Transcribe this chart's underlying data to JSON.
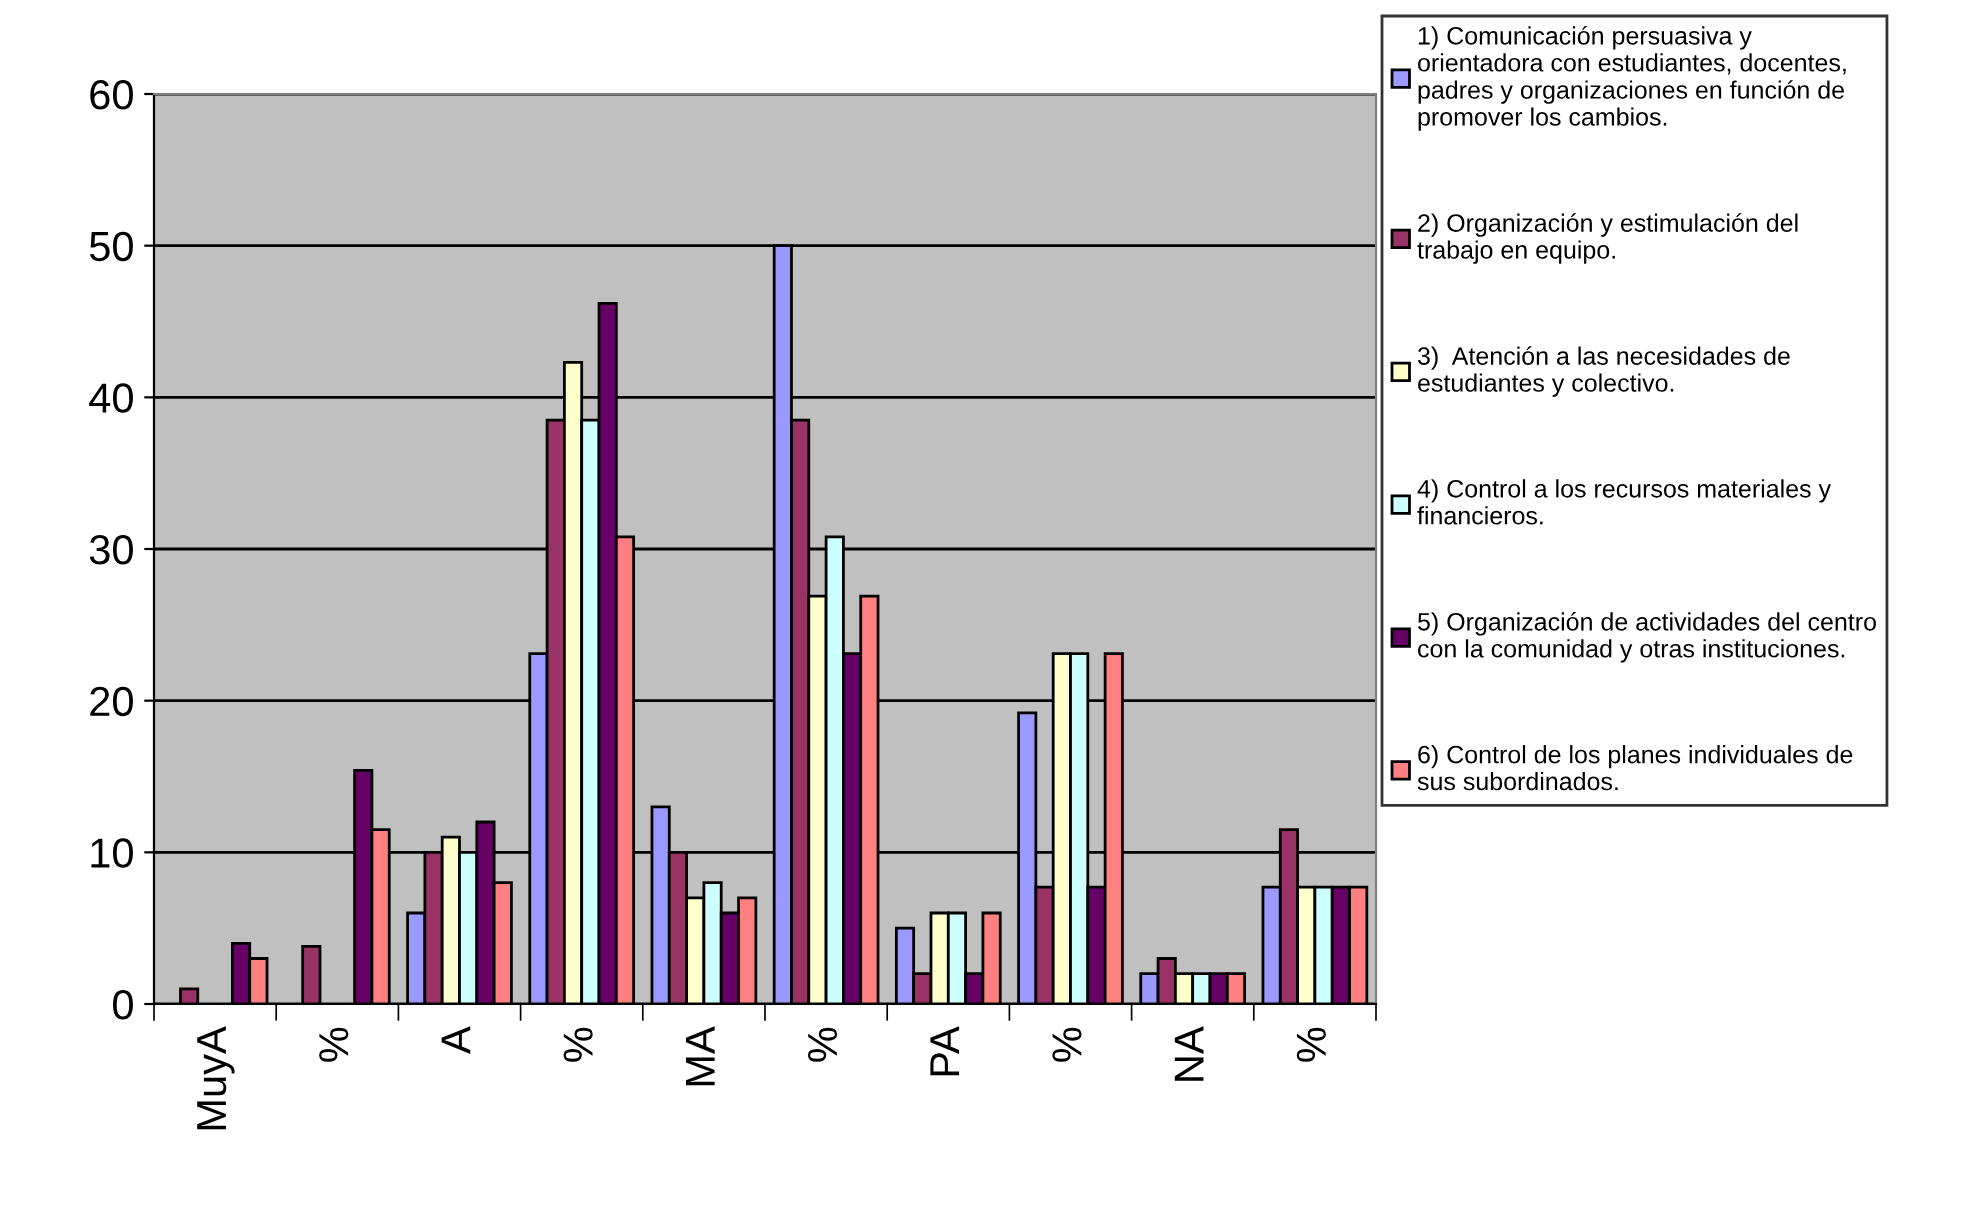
{
  "chart_data": {
    "type": "bar",
    "categories": [
      "MuyA",
      "%",
      "A",
      "%",
      "MA",
      "%",
      "PA",
      "%",
      "NA",
      "%"
    ],
    "series": [
      {
        "name": "1) Comunicación persuasiva y\norientadora con estudiantes, docentes,\npadres y organizaciones en función de\npromover los cambios.",
        "color": "#9999ff",
        "values": [
          null,
          null,
          6,
          23.1,
          13,
          50,
          5,
          19.2,
          2,
          7.7
        ]
      },
      {
        "name": "2) Organización y estimulación del\ntrabajo en equipo.",
        "color": "#993366",
        "values": [
          1,
          3.8,
          10,
          38.5,
          10,
          38.5,
          2,
          7.7,
          3,
          11.5
        ]
      },
      {
        "name": "3)  Atención a las necesidades de\nestudiantes y colectivo.",
        "color": "#ffffcc",
        "values": [
          null,
          null,
          11,
          42.3,
          7,
          26.9,
          6,
          23.1,
          2,
          7.7
        ]
      },
      {
        "name": "4) Control a los recursos materiales y\nfinancieros.",
        "color": "#ccffff",
        "values": [
          null,
          null,
          10,
          38.5,
          8,
          30.8,
          6,
          23.1,
          2,
          7.7
        ]
      },
      {
        "name": "5) Organización de actividades del centro\ncon la comunidad y otras instituciones.",
        "color": "#660066",
        "values": [
          4,
          15.4,
          12,
          46.2,
          6,
          23.1,
          2,
          7.7,
          2,
          7.7
        ]
      },
      {
        "name": "6) Control de los planes individuales de\nsus subordinados.",
        "color": "#ff8080",
        "values": [
          3,
          11.5,
          8,
          30.8,
          7,
          26.9,
          6,
          23.1,
          2,
          7.7
        ]
      }
    ],
    "ylim": [
      0,
      60
    ],
    "yticks": [
      0,
      10,
      20,
      30,
      40,
      50,
      60
    ],
    "grid": "y",
    "legend": "right"
  }
}
